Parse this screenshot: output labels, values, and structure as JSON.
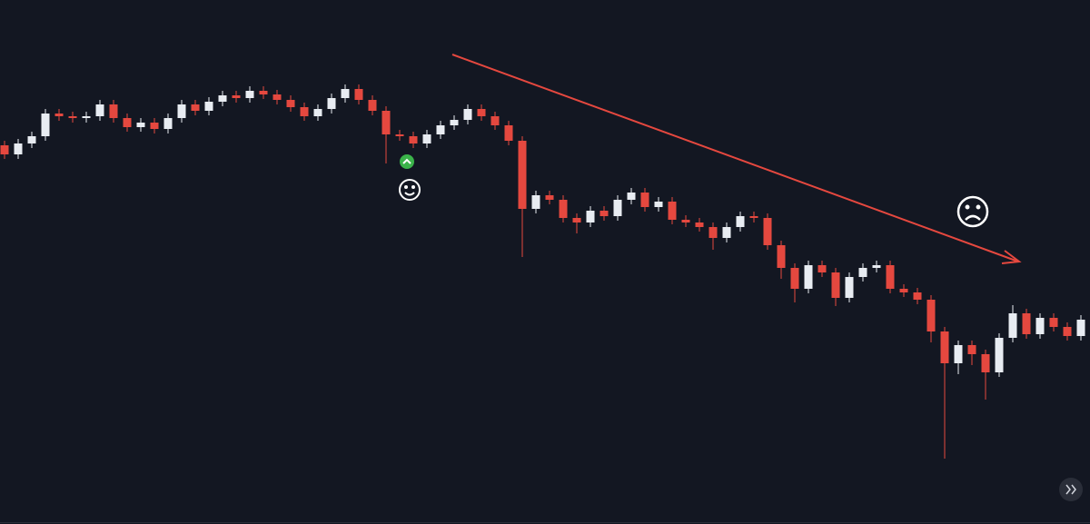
{
  "chart_data": {
    "type": "candlestick",
    "up_color": "#e8ecf2",
    "down_color": "#e5483f",
    "ylim": [
      0,
      577
    ],
    "open": [
      417,
      407,
      419,
      427,
      452,
      449,
      447,
      449,
      462,
      447,
      437,
      442,
      435,
      447,
      462,
      455,
      465,
      472,
      469,
      477,
      473,
      467,
      459,
      449,
      457,
      469,
      479,
      467,
      455,
      429,
      427,
      419,
      429,
      439,
      445,
      457,
      449,
      439,
      422,
      347,
      362,
      357,
      337,
      332,
      345,
      339,
      357,
      365,
      349,
      355,
      335,
      332,
      327,
      315,
      327,
      339,
      337,
      307,
      282,
      259,
      285,
      277,
      249,
      272,
      282,
      285,
      259,
      255,
      247,
      212,
      177,
      197,
      187,
      167,
      205,
      232,
      209,
      227,
      217,
      207
    ],
    "high": [
      422,
      424,
      432,
      457,
      457,
      454,
      454,
      467,
      467,
      452,
      447,
      447,
      452,
      467,
      467,
      470,
      477,
      477,
      482,
      482,
      478,
      472,
      464,
      462,
      474,
      484,
      484,
      472,
      460,
      434,
      432,
      434,
      444,
      450,
      462,
      462,
      454,
      444,
      427,
      367,
      367,
      362,
      342,
      350,
      350,
      362,
      370,
      370,
      360,
      360,
      340,
      337,
      332,
      332,
      344,
      344,
      342,
      312,
      287,
      290,
      290,
      282,
      277,
      287,
      290,
      290,
      264,
      260,
      252,
      217,
      202,
      202,
      192,
      210,
      241,
      237,
      232,
      232,
      222,
      230
    ],
    "low": [
      402,
      402,
      414,
      422,
      444,
      442,
      442,
      444,
      442,
      432,
      432,
      430,
      430,
      442,
      450,
      450,
      460,
      464,
      464,
      468,
      462,
      454,
      444,
      444,
      452,
      464,
      462,
      450,
      397,
      422,
      414,
      414,
      424,
      434,
      440,
      444,
      434,
      417,
      294,
      342,
      352,
      332,
      320,
      327,
      334,
      334,
      352,
      344,
      344,
      330,
      327,
      322,
      302,
      310,
      322,
      332,
      302,
      270,
      244,
      254,
      272,
      240,
      244,
      267,
      277,
      254,
      250,
      242,
      200,
      72,
      165,
      175,
      137,
      162,
      200,
      204,
      204,
      212,
      202,
      202
    ],
    "close": [
      407,
      419,
      427,
      452,
      449,
      447,
      449,
      462,
      447,
      437,
      442,
      435,
      447,
      462,
      455,
      465,
      472,
      469,
      477,
      473,
      467,
      459,
      449,
      457,
      469,
      479,
      467,
      455,
      429,
      427,
      419,
      429,
      439,
      445,
      457,
      449,
      439,
      422,
      347,
      362,
      357,
      337,
      332,
      345,
      339,
      357,
      365,
      349,
      355,
      335,
      332,
      327,
      315,
      327,
      339,
      337,
      307,
      282,
      259,
      285,
      277,
      249,
      272,
      282,
      285,
      259,
      255,
      247,
      212,
      177,
      197,
      187,
      167,
      205,
      232,
      209,
      227,
      217,
      207,
      225
    ]
  }
}
